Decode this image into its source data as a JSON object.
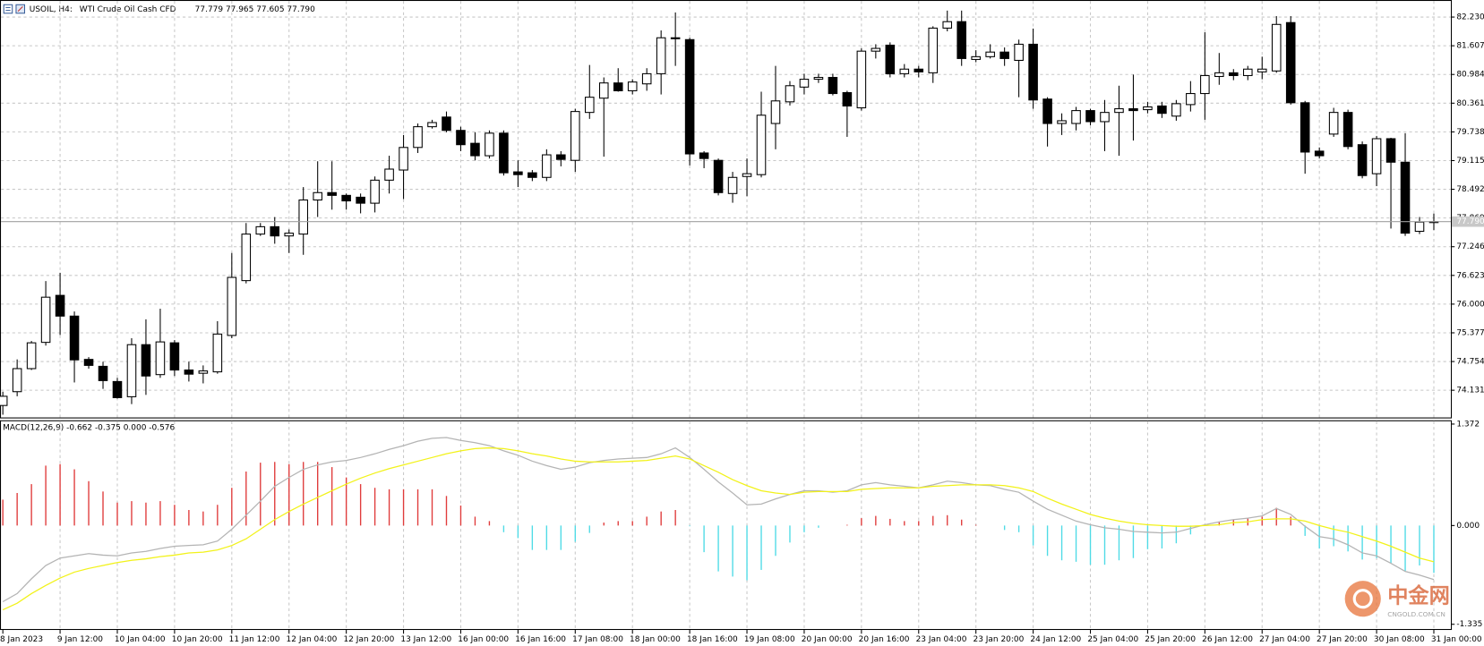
{
  "chart_data": [
    {
      "type": "candlestick",
      "title": "USOIL, H4:",
      "subtitle": "WTI Crude Oil Cash CFD",
      "annotation": "77.779 77.965 77.605 77.790",
      "categories": [
        "8 Jan 2023",
        null,
        null,
        null,
        "9 Jan 12:00",
        null,
        null,
        null,
        "10 Jan 04:00",
        null,
        null,
        null,
        "10 Jan 20:00",
        null,
        null,
        null,
        "11 Jan 12:00",
        null,
        null,
        null,
        "12 Jan 04:00",
        null,
        null,
        null,
        "12 Jan 20:00",
        null,
        null,
        null,
        "13 Jan 12:00",
        null,
        null,
        null,
        "16 Jan 00:00",
        null,
        null,
        null,
        "16 Jan 16:00",
        null,
        null,
        null,
        "17 Jan 08:00",
        null,
        null,
        null,
        "18 Jan 00:00",
        null,
        null,
        null,
        "18 Jan 16:00",
        null,
        null,
        null,
        "19 Jan 08:00",
        null,
        null,
        null,
        "20 Jan 00:00",
        null,
        null,
        null,
        "20 Jan 16:00",
        null,
        null,
        null,
        "23 Jan 04:00",
        null,
        null,
        null,
        "23 Jan 20:00",
        null,
        null,
        null,
        "24 Jan 12:00",
        null,
        null,
        null,
        "25 Jan 04:00",
        null,
        null,
        null,
        "25 Jan 20:00",
        null,
        null,
        null,
        "26 Jan 12:00",
        null,
        null,
        null,
        "27 Jan 04:00",
        null,
        null,
        null,
        "27 Jan 20:00",
        null,
        null,
        null,
        "30 Jan 08:00",
        null,
        null,
        null,
        "31 Jan 00:00"
      ],
      "open": [
        73.8,
        74.1,
        74.6,
        75.17,
        76.19,
        75.74,
        74.8,
        74.65,
        74.32,
        73.99,
        75.12,
        74.47,
        75.16,
        74.57,
        74.5,
        74.53,
        75.32,
        76.51,
        77.52,
        77.68,
        77.48,
        77.52,
        78.26,
        78.42,
        78.36,
        78.32,
        78.19,
        78.69,
        78.91,
        79.4,
        79.85,
        80.06,
        79.77,
        79.49,
        79.22,
        79.71,
        78.87,
        78.85,
        78.75,
        79.24,
        79.12,
        80.16,
        80.47,
        80.8,
        80.63,
        80.78,
        81.0,
        81.76,
        81.74,
        79.28,
        79.12,
        78.4,
        78.77,
        78.81,
        79.92,
        80.39,
        80.71,
        80.88,
        80.92,
        80.59,
        80.26,
        81.49,
        81.62,
        81.0,
        81.1,
        81.02,
        81.99,
        82.13,
        81.31,
        81.37,
        81.47,
        81.29,
        81.64,
        80.45,
        79.92,
        79.92,
        80.2,
        79.96,
        80.16,
        80.24,
        80.22,
        80.3,
        80.08,
        80.33,
        80.57,
        80.94,
        81.02,
        80.96,
        81.04,
        81.06,
        82.11,
        80.37,
        79.32,
        79.69,
        80.16,
        79.46,
        78.83,
        79.59,
        79.08,
        77.58,
        77.779
      ],
      "high": [
        74.1,
        74.8,
        75.2,
        76.5,
        76.68,
        75.84,
        74.85,
        74.75,
        74.4,
        75.26,
        75.67,
        75.9,
        75.22,
        74.75,
        74.67,
        75.63,
        77.11,
        77.76,
        77.76,
        77.89,
        77.62,
        78.54,
        79.1,
        79.1,
        78.4,
        78.4,
        78.77,
        79.22,
        79.67,
        79.92,
        80.0,
        80.18,
        79.85,
        79.73,
        79.77,
        79.77,
        79.12,
        78.91,
        79.36,
        79.32,
        80.24,
        81.19,
        80.92,
        81.12,
        80.88,
        81.12,
        81.94,
        82.33,
        81.78,
        79.32,
        79.16,
        78.87,
        79.16,
        80.61,
        81.17,
        80.84,
        81.0,
        81.0,
        81.0,
        80.63,
        81.55,
        81.64,
        81.68,
        81.21,
        81.17,
        82.03,
        82.37,
        82.37,
        81.51,
        81.64,
        81.57,
        81.74,
        81.98,
        80.49,
        80.14,
        80.28,
        80.24,
        80.43,
        80.74,
        80.98,
        80.39,
        80.39,
        80.43,
        80.84,
        81.9,
        81.45,
        81.1,
        81.17,
        81.37,
        82.25,
        82.25,
        80.41,
        79.4,
        80.26,
        80.22,
        79.53,
        79.65,
        79.61,
        79.71,
        77.89,
        77.965
      ],
      "low": [
        73.6,
        74.0,
        74.57,
        75.1,
        75.33,
        74.3,
        74.6,
        74.16,
        73.95,
        73.83,
        74.03,
        74.4,
        74.44,
        74.32,
        74.28,
        74.49,
        75.26,
        76.45,
        77.48,
        77.31,
        77.11,
        77.07,
        77.89,
        78.05,
        78.05,
        77.97,
        77.99,
        78.4,
        78.28,
        79.28,
        79.81,
        79.73,
        79.32,
        79.12,
        79.16,
        78.79,
        78.54,
        78.67,
        78.67,
        78.99,
        78.87,
        80.02,
        79.2,
        80.61,
        80.55,
        80.63,
        80.55,
        81.17,
        79.01,
        78.95,
        78.36,
        78.2,
        78.34,
        78.75,
        79.36,
        80.31,
        80.55,
        80.8,
        80.53,
        79.63,
        80.2,
        81.33,
        80.92,
        80.92,
        80.92,
        80.8,
        81.92,
        81.17,
        81.25,
        81.33,
        81.17,
        80.49,
        80.24,
        79.42,
        79.67,
        79.77,
        79.88,
        79.32,
        79.22,
        79.55,
        80.14,
        80.04,
        79.98,
        80.18,
        80.0,
        80.76,
        80.86,
        80.86,
        80.88,
        81.02,
        80.33,
        78.83,
        79.16,
        79.63,
        79.36,
        78.73,
        78.56,
        77.64,
        77.48,
        77.52,
        77.605
      ],
      "close": [
        74.0,
        74.6,
        75.16,
        76.15,
        75.74,
        74.79,
        74.67,
        74.34,
        73.97,
        75.12,
        74.44,
        75.18,
        74.57,
        74.48,
        74.55,
        75.35,
        76.58,
        77.52,
        77.68,
        77.48,
        77.54,
        78.26,
        78.42,
        78.36,
        78.24,
        78.19,
        78.69,
        78.93,
        79.4,
        79.85,
        79.94,
        79.77,
        79.46,
        79.22,
        79.71,
        78.85,
        78.81,
        78.75,
        79.24,
        79.14,
        80.18,
        80.49,
        80.8,
        80.63,
        80.82,
        81.0,
        81.78,
        81.78,
        79.26,
        79.16,
        78.42,
        78.75,
        78.83,
        80.1,
        80.41,
        80.74,
        80.88,
        80.92,
        80.57,
        80.3,
        81.49,
        81.55,
        81.0,
        81.1,
        81.04,
        81.99,
        82.13,
        81.33,
        81.37,
        81.47,
        81.33,
        81.64,
        80.43,
        79.92,
        79.98,
        80.2,
        79.96,
        80.16,
        80.24,
        80.2,
        80.28,
        80.14,
        80.35,
        80.57,
        80.96,
        81.02,
        80.96,
        81.1,
        81.1,
        82.07,
        80.37,
        79.3,
        79.22,
        80.16,
        79.42,
        78.79,
        79.59,
        79.08,
        77.54,
        77.78,
        77.79
      ],
      "up_color": "#ffffff",
      "down_color": "#000000",
      "outline_color": "#000000",
      "ylim": [
        73.52,
        82.6
      ],
      "yticks": [
        {
          "value": 82.23,
          "label": "82.230"
        },
        81.607,
        80.984,
        80.361,
        79.738,
        79.115,
        78.492,
        77.869,
        77.246,
        76.623,
        {
          "value": 76,
          "label": "76.000"
        },
        75.377,
        74.754,
        74.131
      ],
      "price_line": {
        "value": 77.79,
        "label": "77.790"
      },
      "grid": true
    },
    {
      "type": "macd",
      "title": "MACD(12,26,9) -0.662 -0.375 0.000 -0.576",
      "series": [
        {
          "kind": "bar",
          "color": "#e03c3c",
          "negative_color": "#4fdbe6",
          "values": [
            0.35,
            0.44,
            0.56,
            0.81,
            0.83,
            0.76,
            0.6,
            0.46,
            0.31,
            0.33,
            0.31,
            0.33,
            0.28,
            0.21,
            0.19,
            0.28,
            0.51,
            0.73,
            0.85,
            0.86,
            0.83,
            0.86,
            0.86,
            0.79,
            0.65,
            0.56,
            0.51,
            0.49,
            0.49,
            0.49,
            0.49,
            0.4,
            0.27,
            0.12,
            0.06,
            -0.09,
            -0.17,
            -0.33,
            -0.33,
            -0.33,
            -0.22,
            -0.1,
            0.04,
            0.06,
            0.06,
            0.12,
            0.19,
            0.21,
            -0.01,
            -0.36,
            -0.62,
            -0.69,
            -0.74,
            -0.6,
            -0.41,
            -0.23,
            -0.09,
            -0.03,
            0.0,
            0.01,
            0.1,
            0.13,
            0.09,
            0.06,
            0.06,
            0.13,
            0.14,
            0.08,
            0.01,
            0.0,
            -0.06,
            -0.09,
            -0.27,
            -0.41,
            -0.47,
            -0.49,
            -0.53,
            -0.53,
            -0.47,
            -0.44,
            -0.32,
            -0.31,
            -0.24,
            -0.12,
            0.0,
            0.05,
            0.08,
            0.1,
            0.12,
            0.24,
            0.12,
            -0.14,
            -0.31,
            -0.28,
            -0.35,
            -0.46,
            -0.44,
            -0.51,
            -0.62,
            -0.54,
            -0.64
          ]
        },
        {
          "kind": "line",
          "color": "#b4b4b4",
          "values": [
            -1.03,
            -0.92,
            -0.72,
            -0.54,
            -0.44,
            -0.41,
            -0.38,
            -0.4,
            -0.41,
            -0.37,
            -0.35,
            -0.31,
            -0.28,
            -0.27,
            -0.26,
            -0.21,
            -0.05,
            0.14,
            0.33,
            0.53,
            0.65,
            0.76,
            0.82,
            0.86,
            0.88,
            0.92,
            0.97,
            1.03,
            1.08,
            1.14,
            1.18,
            1.19,
            1.15,
            1.12,
            1.08,
            1.01,
            0.95,
            0.87,
            0.81,
            0.76,
            0.79,
            0.85,
            0.88,
            0.9,
            0.91,
            0.92,
            0.97,
            1.05,
            0.92,
            0.76,
            0.59,
            0.44,
            0.28,
            0.29,
            0.36,
            0.42,
            0.47,
            0.47,
            0.45,
            0.47,
            0.55,
            0.58,
            0.55,
            0.53,
            0.51,
            0.55,
            0.6,
            0.58,
            0.55,
            0.54,
            0.49,
            0.45,
            0.33,
            0.22,
            0.14,
            0.06,
            0.01,
            -0.03,
            -0.05,
            -0.08,
            -0.09,
            -0.1,
            -0.09,
            -0.04,
            0.01,
            0.05,
            0.08,
            0.1,
            0.13,
            0.23,
            0.15,
            -0.01,
            -0.15,
            -0.18,
            -0.26,
            -0.37,
            -0.41,
            -0.51,
            -0.62,
            -0.67,
            -0.73
          ]
        },
        {
          "kind": "line",
          "color": "#f2f21a",
          "values": [
            -1.14,
            -1.05,
            -0.92,
            -0.81,
            -0.71,
            -0.63,
            -0.58,
            -0.54,
            -0.5,
            -0.47,
            -0.45,
            -0.42,
            -0.4,
            -0.37,
            -0.36,
            -0.33,
            -0.27,
            -0.18,
            -0.05,
            0.08,
            0.19,
            0.29,
            0.38,
            0.47,
            0.56,
            0.64,
            0.71,
            0.77,
            0.82,
            0.87,
            0.92,
            0.97,
            1.01,
            1.04,
            1.05,
            1.04,
            1.01,
            0.97,
            0.94,
            0.9,
            0.87,
            0.86,
            0.86,
            0.86,
            0.87,
            0.88,
            0.91,
            0.94,
            0.9,
            0.81,
            0.72,
            0.62,
            0.54,
            0.47,
            0.44,
            0.42,
            0.45,
            0.46,
            0.46,
            0.46,
            0.49,
            0.5,
            0.51,
            0.51,
            0.51,
            0.53,
            0.54,
            0.55,
            0.55,
            0.55,
            0.54,
            0.51,
            0.46,
            0.37,
            0.29,
            0.22,
            0.15,
            0.1,
            0.06,
            0.03,
            0.01,
            0.0,
            -0.01,
            -0.01,
            0.0,
            0.01,
            0.04,
            0.05,
            0.08,
            0.09,
            0.09,
            0.06,
            0.0,
            -0.05,
            -0.09,
            -0.15,
            -0.21,
            -0.28,
            -0.36,
            -0.44,
            -0.49
          ]
        }
      ],
      "ylim": [
        -1.335,
        1.372
      ],
      "yticks": [
        1.372,
        {
          "value": 0,
          "label": "0.000"
        },
        -1.335
      ]
    }
  ],
  "watermark": {
    "name": "中金网",
    "site": "CNGOLD.COM.CN"
  }
}
